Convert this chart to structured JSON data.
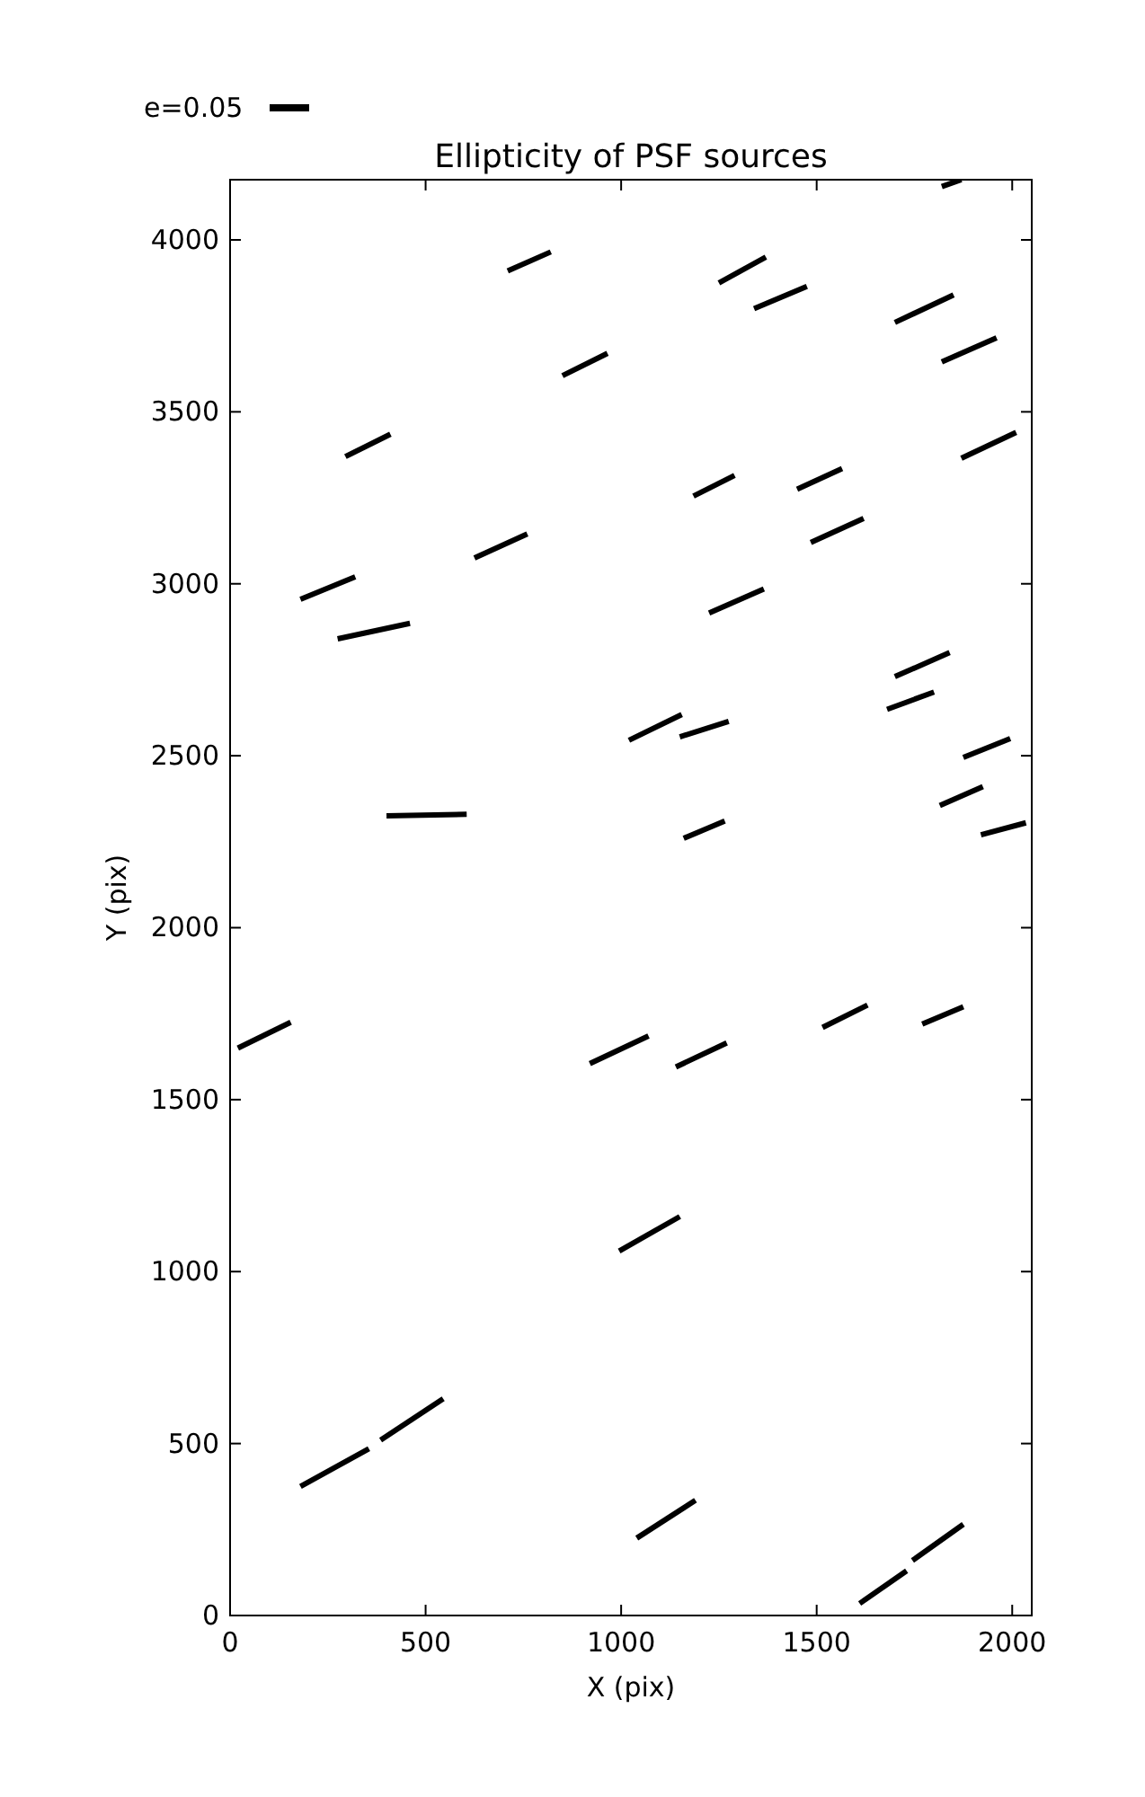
{
  "chart_data": {
    "type": "line",
    "title": "Ellipticity of PSF sources",
    "xlabel": "X (pix)",
    "ylabel": "Y (pix)",
    "annotations": [
      "e=0.05"
    ],
    "color": "#000000",
    "xlim": [
      0,
      2050
    ],
    "ylim": [
      0,
      4175
    ],
    "xticks": [
      0,
      500,
      1000,
      1500,
      2000
    ],
    "yticks": [
      0,
      500,
      1000,
      1500,
      2000,
      2500,
      3000,
      3500,
      4000
    ],
    "series": [
      {
        "x": [
          1820,
          1870
        ],
        "values": [
          4155,
          4175
        ]
      },
      {
        "x": [
          710,
          820
        ],
        "values": [
          3910,
          3965
        ]
      },
      {
        "x": [
          1250,
          1370
        ],
        "values": [
          3875,
          3950
        ]
      },
      {
        "x": [
          1340,
          1475
        ],
        "values": [
          3800,
          3865
        ]
      },
      {
        "x": [
          1700,
          1850
        ],
        "values": [
          3760,
          3840
        ]
      },
      {
        "x": [
          1820,
          1960
        ],
        "values": [
          3645,
          3715
        ]
      },
      {
        "x": [
          850,
          965
        ],
        "values": [
          3605,
          3670
        ]
      },
      {
        "x": [
          295,
          410
        ],
        "values": [
          3370,
          3435
        ]
      },
      {
        "x": [
          1185,
          1290
        ],
        "values": [
          3255,
          3315
        ]
      },
      {
        "x": [
          1450,
          1565
        ],
        "values": [
          3275,
          3335
        ]
      },
      {
        "x": [
          1870,
          2010
        ],
        "values": [
          3365,
          3440
        ]
      },
      {
        "x": [
          625,
          760
        ],
        "values": [
          3075,
          3145
        ]
      },
      {
        "x": [
          180,
          320
        ],
        "values": [
          2955,
          3020
        ]
      },
      {
        "x": [
          1485,
          1620
        ],
        "values": [
          3120,
          3190
        ]
      },
      {
        "x": [
          275,
          460
        ],
        "values": [
          2840,
          2885
        ]
      },
      {
        "x": [
          1225,
          1365
        ],
        "values": [
          2915,
          2985
        ]
      },
      {
        "x": [
          1700,
          1840
        ],
        "values": [
          2730,
          2800
        ]
      },
      {
        "x": [
          1020,
          1155
        ],
        "values": [
          2545,
          2620
        ]
      },
      {
        "x": [
          1150,
          1275
        ],
        "values": [
          2555,
          2600
        ]
      },
      {
        "x": [
          1680,
          1800
        ],
        "values": [
          2635,
          2685
        ]
      },
      {
        "x": [
          1875,
          1995
        ],
        "values": [
          2495,
          2550
        ]
      },
      {
        "x": [
          1815,
          1925
        ],
        "values": [
          2355,
          2410
        ]
      },
      {
        "x": [
          400,
          605
        ],
        "values": [
          2325,
          2330
        ]
      },
      {
        "x": [
          1160,
          1265
        ],
        "values": [
          2260,
          2310
        ]
      },
      {
        "x": [
          1920,
          2035
        ],
        "values": [
          2270,
          2305
        ]
      },
      {
        "x": [
          20,
          155
        ],
        "values": [
          1650,
          1725
        ]
      },
      {
        "x": [
          920,
          1070
        ],
        "values": [
          1605,
          1685
        ]
      },
      {
        "x": [
          1140,
          1270
        ],
        "values": [
          1595,
          1665
        ]
      },
      {
        "x": [
          1515,
          1630
        ],
        "values": [
          1710,
          1775
        ]
      },
      {
        "x": [
          1770,
          1875
        ],
        "values": [
          1720,
          1770
        ]
      },
      {
        "x": [
          995,
          1150
        ],
        "values": [
          1060,
          1160
        ]
      },
      {
        "x": [
          180,
          355
        ],
        "values": [
          375,
          485
        ]
      },
      {
        "x": [
          385,
          545
        ],
        "values": [
          510,
          630
        ]
      },
      {
        "x": [
          1040,
          1190
        ],
        "values": [
          225,
          335
        ]
      },
      {
        "x": [
          1610,
          1730
        ],
        "values": [
          35,
          130
        ]
      },
      {
        "x": [
          1745,
          1875
        ],
        "values": [
          160,
          265
        ]
      }
    ]
  }
}
